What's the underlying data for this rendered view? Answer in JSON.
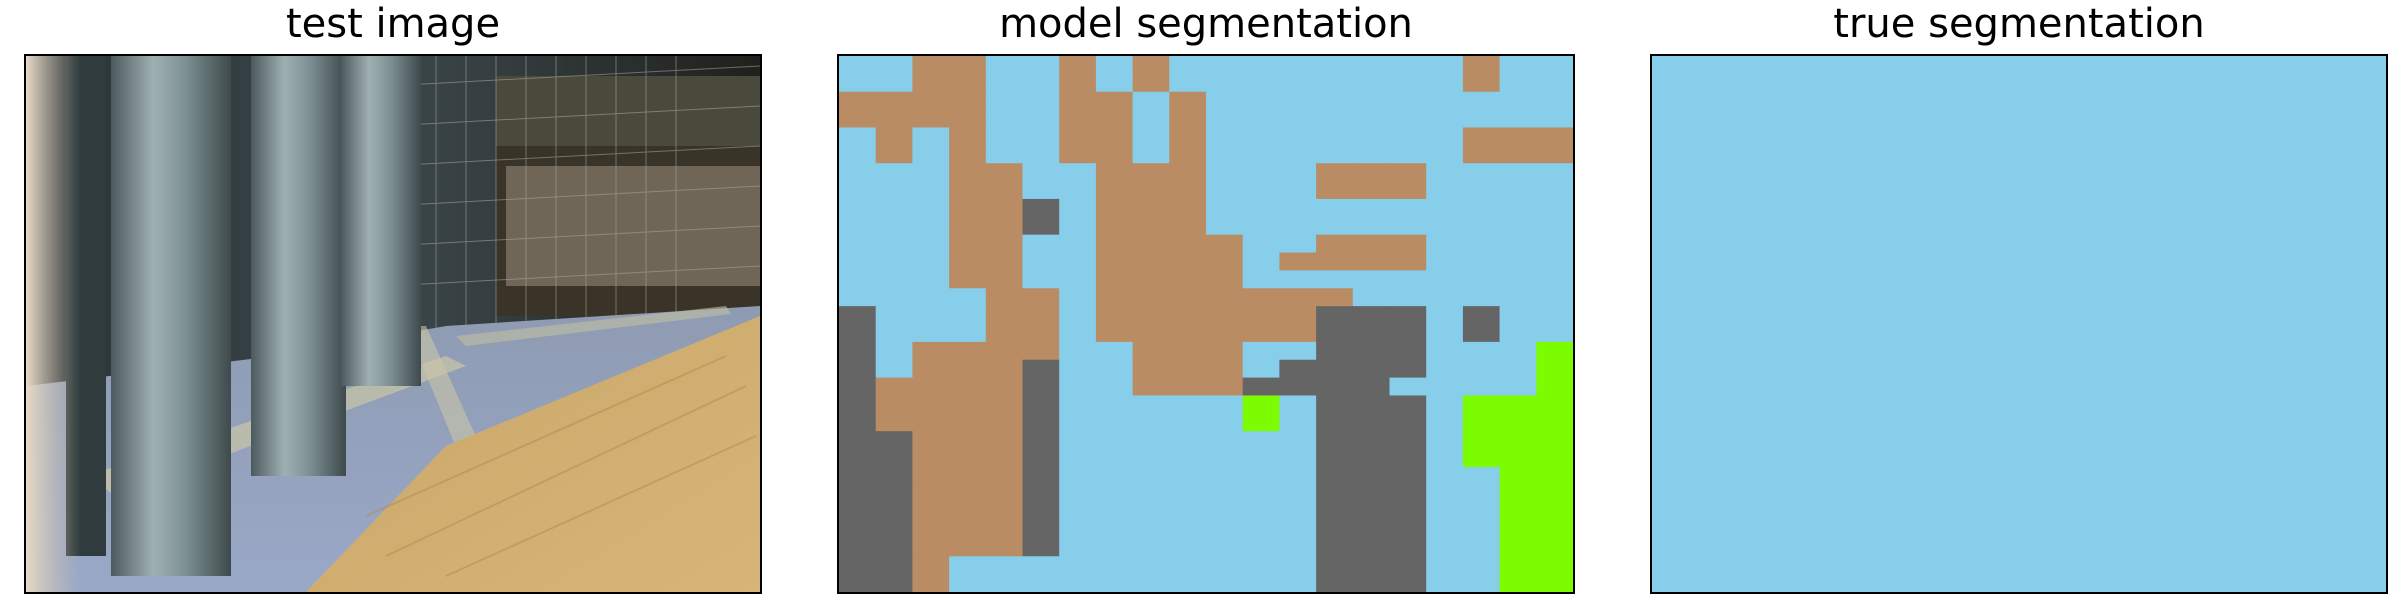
{
  "panels": [
    {
      "title": "test image"
    },
    {
      "title": "model segmentation"
    },
    {
      "title": "true segmentation"
    }
  ],
  "palette": {
    "sky": "#87CEEB",
    "brown": "#BA8C64",
    "gray": "#656565",
    "green": "#7CFC00",
    "border": "#000000"
  },
  "model_grid": [
    "SSBBSSBSBSSSSSSSSBSS",
    "SSBBSSBSBSSSSSSSSBSS",
    "BBBBSSBBSBSSSSSSSSSS",
    "BBBBSSBBSBSSSSSSSSSS",
    "SBSBSSBBSBSSSSSSSBBB",
    "SBSBSSBBSBSSSSSSSBBB",
    "SSSBBSSBBBSSSBBBSSSS",
    "SSSBBSSBBBSSSBBBSSSS",
    "SSSBBGSBBBSSSSSSSSSS",
    "SSSBBGSBBBSSSSSSSSSS",
    "SSSBBSSBBBBSSBBBSSSS",
    "SSSBBSSBBBBSBBBBSSSS",
    "SSSBBSSBBBBSSSSSSSSS",
    "SSSSBBSBBBBBBBSSSSSS",
    "GSSSBBSBBBBBBGGGSGSS",
    "GSSSBBSBBBBBBGGGSGSS",
    "GSBBBBSSBBBSSGGGSSSL",
    "GSBBBGSSBBBSGGGGSSSL",
    "GBBBBGSSBBBGGGGSSSSL",
    "GBBBBGSSSSSLSGGGSLLL",
    "GBBBBGSSSSSLSGGGSLLL",
    "GGBBBGSSSSSSSGGGSLLL",
    "GGBBBGSSSSSSSGGGSLLL",
    "GGBBBGSSSSSSSGGGSSLL",
    "GGBBBGSSSSSSSGGGSSLL",
    "GGBBBGSSSSSSSGGGSSLL",
    "GGBBBGSSSSSSSGGGSSLL",
    "GGBBBGSSSSSSSGGGSSLL",
    "GGBSSSSSSSSSSGGGSSLL",
    "GGBSSSSSSSSSSGGGSSLL"
  ],
  "true_grid": [
    "SSSSSSSSSSSSSSSSSSSS",
    "SSSSSSSSSSSSSSSSSSSS",
    "SSSSSSSSSSSSSSSSSSSS",
    "SSSSSSSSSSSSSSSSSSSS",
    "SSSSSSSSSSSSSSSSSSSS",
    "SSSSSSSSSSSSSSSSSSSS",
    "SSSSSSSSSSSSSSSSSSSS",
    "SSSSSSSSSSSSSSSSSSSS",
    "SSSSSSSSSSSSSSSSSSSS",
    "SSSSSSSSSSSSSSSSSSSS",
    "SSSSSSSSSSSSSSSSSSSS",
    "SSSSSSSSSSSSSSSSSSSS",
    "SSSSSSSSSSSSSSSSSSSS",
    "SSSSSSSSSSSSSSSSSSSS",
    "SSSSSSSSSSSSSSSSSSSS",
    "SSSSSSSSSSSSSSSSSSSS",
    "SSSSSSSSSSSSSSSSSSSS",
    "SSSSSSSSSSSSSSSSSSSS",
    "SSSSSSSSSSSSSSSSSSSS",
    "SSSSSSSSSSSSSSSSSSSS",
    "SSSSSSSSSSSSSSSSSSSS",
    "SSSSSSSSSSSSSSSSSSSS",
    "SSSSSSSSSSSSSSSSSSSS",
    "SSSSSSSSSSSSSSSSSSSS",
    "SSSSSSSSSSSSSSSSSSSS",
    "SSSSSSSSSSSSSSSSSSSS",
    "SSSSSSSSSSSSSSSSSSSS",
    "SSSSSSSSSSSSSSSSSSSS",
    "SSSSSSSSSSSSSSSSSSSS",
    "SSSSSSSSSSSSSSSSSSSS"
  ]
}
